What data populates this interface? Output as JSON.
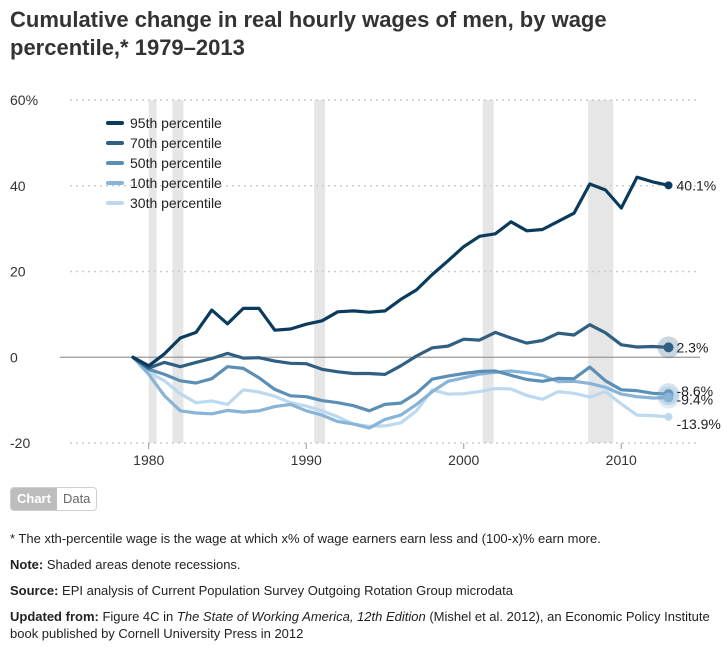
{
  "title": "Cumulative change in real hourly wages of men, by wage percentile,* 1979–2013",
  "tabs": {
    "chart": "Chart",
    "data": "Data"
  },
  "notes": {
    "footnote": "* The xth-percentile wage is the wage at which x% of wage earners earn less and (100-x)% earn more.",
    "note_label": "Note:",
    "note_text": "Shaded areas denote recessions.",
    "source_label": "Source:",
    "source_text": "EPI analysis of Current Population Survey Outgoing Rotation Group microdata",
    "updated_label": "Updated from:",
    "updated_text_1": "Figure 4C in",
    "updated_book": "The State of Working America, 12th Edition",
    "updated_text_2": "(Mishel et al. 2012), an Economic Policy Institute book published by Cornell University Press in 2012"
  },
  "chart_data": {
    "type": "line",
    "title": "Cumulative change in real hourly wages of men, by wage percentile,* 1979–2013",
    "xlabel": "",
    "ylabel": "",
    "xlim": [
      1975,
      2015
    ],
    "ylim": [
      -20,
      60
    ],
    "yticks": [
      -20,
      0,
      20,
      40,
      60
    ],
    "ytick_labels": [
      "-20",
      "0",
      "20",
      "40",
      "60%"
    ],
    "xticks": [
      1980,
      1990,
      2000,
      2010
    ],
    "xtick_labels": [
      "1980",
      "1990",
      "2000",
      "2010"
    ],
    "recessions": [
      [
        1980.0,
        1980.5
      ],
      [
        1981.5,
        1982.2
      ],
      [
        1990.5,
        1991.2
      ],
      [
        2001.2,
        2001.9
      ],
      [
        2007.9,
        2009.5
      ]
    ],
    "x": [
      1979,
      1980,
      1981,
      1982,
      1983,
      1984,
      1985,
      1986,
      1987,
      1988,
      1989,
      1990,
      1991,
      1992,
      1993,
      1994,
      1995,
      1996,
      1997,
      1998,
      1999,
      2000,
      2001,
      2002,
      2003,
      2004,
      2005,
      2006,
      2007,
      2008,
      2009,
      2010,
      2011,
      2012,
      2013
    ],
    "series": [
      {
        "name": "95th percentile",
        "color": "#0b3b5c",
        "end_label": "40.1%",
        "values": [
          0,
          -2.0,
          0.8,
          4.5,
          5.8,
          11.0,
          7.8,
          11.4,
          11.4,
          6.3,
          6.6,
          7.7,
          8.5,
          10.6,
          10.8,
          10.5,
          10.8,
          13.5,
          15.7,
          19.3,
          22.5,
          25.8,
          28.2,
          28.8,
          31.6,
          29.5,
          29.8,
          31.7,
          33.6,
          40.4,
          39.0,
          34.8,
          42.0,
          40.9,
          40.1
        ]
      },
      {
        "name": "70th percentile",
        "color": "#2f5f82",
        "end_label": "2.3%",
        "values": [
          0,
          -2.5,
          -1.2,
          -2.2,
          -1.2,
          -0.3,
          0.9,
          -0.2,
          -0.1,
          -0.9,
          -1.4,
          -1.5,
          -2.8,
          -3.4,
          -3.8,
          -3.8,
          -4.0,
          -2.0,
          0.3,
          2.2,
          2.6,
          4.2,
          4.0,
          5.8,
          4.5,
          3.3,
          3.9,
          5.6,
          5.2,
          7.6,
          5.7,
          2.9,
          2.4,
          2.5,
          2.3
        ]
      },
      {
        "name": "50th percentile",
        "color": "#5c8fb5",
        "end_label": "-8.6%",
        "values": [
          0,
          -2.8,
          -4.0,
          -5.5,
          -6.0,
          -5.0,
          -2.2,
          -2.6,
          -4.8,
          -7.5,
          -9.0,
          -9.2,
          -10.1,
          -10.6,
          -11.3,
          -12.5,
          -11.0,
          -10.7,
          -8.4,
          -5.1,
          -4.4,
          -3.8,
          -3.3,
          -3.2,
          -4.2,
          -5.2,
          -5.6,
          -4.9,
          -5.0,
          -2.3,
          -5.5,
          -7.6,
          -7.8,
          -8.4,
          -8.6
        ]
      },
      {
        "name": "10th percentile",
        "color": "#88b4d8",
        "end_label": "-9.4%",
        "values": [
          0,
          -4.0,
          -9.0,
          -12.5,
          -13.0,
          -13.2,
          -12.4,
          -12.8,
          -12.5,
          -11.5,
          -11.0,
          -12.5,
          -13.5,
          -15.0,
          -15.6,
          -16.5,
          -14.5,
          -13.5,
          -11.0,
          -8.0,
          -5.6,
          -4.8,
          -3.9,
          -3.5,
          -3.2,
          -3.6,
          -4.2,
          -5.7,
          -5.6,
          -6.1,
          -7.0,
          -8.6,
          -9.2,
          -9.5,
          -9.4
        ]
      },
      {
        "name": "30th percentile",
        "color": "#bcd9f0",
        "end_label": "-13.9%",
        "values": [
          0,
          -3.5,
          -5.5,
          -8.5,
          -10.6,
          -10.2,
          -11.0,
          -7.6,
          -8.1,
          -9.1,
          -10.6,
          -11.4,
          -12.5,
          -13.9,
          -15.6,
          -16.1,
          -16.0,
          -15.3,
          -12.5,
          -7.6,
          -8.6,
          -8.5,
          -8.0,
          -7.3,
          -7.4,
          -8.9,
          -9.8,
          -8.0,
          -8.4,
          -9.3,
          -8.0,
          -10.9,
          -13.5,
          -13.6,
          -13.9
        ]
      }
    ]
  }
}
